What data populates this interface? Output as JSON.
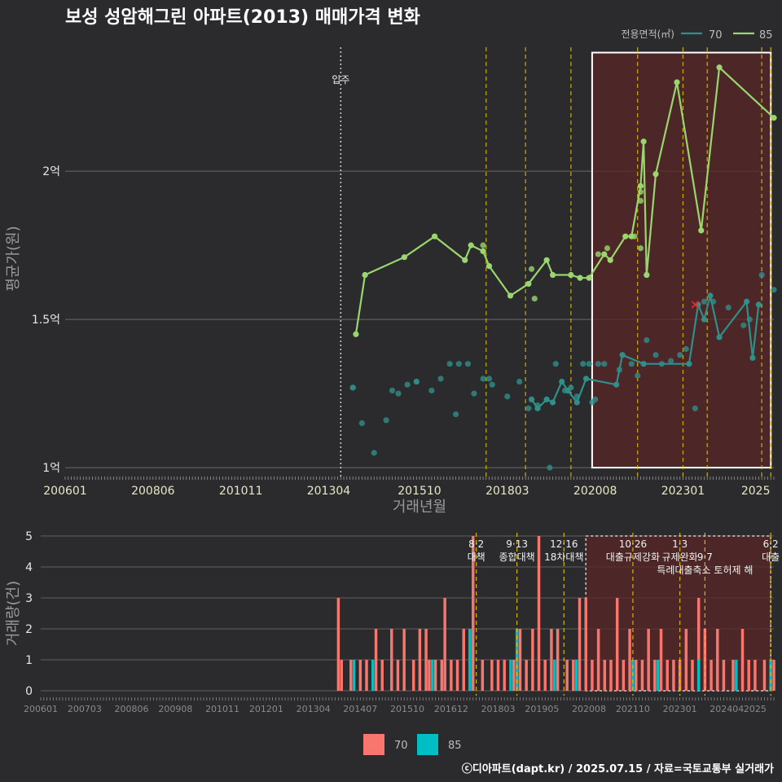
{
  "title": "보성 성암해그린 아파트(2013) 매매가격 변화",
  "caption": "ⓒ디아파트(dapt.kr) / 2025.07.15 / 자료=국토교통부 실거래가",
  "colors": {
    "s70": "#2f8f8a",
    "s85": "#9ad66e",
    "bar70": "#f8766d",
    "bar85": "#00bfc4",
    "policy": "#e6c400",
    "highlight": "#5a2527"
  },
  "chart_data": [
    {
      "type": "line",
      "xlabel": "거래년월",
      "ylabel": "평균가(원)",
      "x_ticks": [
        "200601",
        "200806",
        "201011",
        "201304",
        "201510",
        "201803",
        "202008",
        "202301",
        "2025"
      ],
      "y_ticks": [
        {
          "value": 10000,
          "label": "1억"
        },
        {
          "value": 15000,
          "label": "1.5억"
        },
        {
          "value": 20000,
          "label": "2억"
        }
      ],
      "ylim": [
        9700,
        24400
      ],
      "xlim": [
        "2006-01",
        "2025-07"
      ],
      "legend": {
        "title": "전용면적(㎡)",
        "position": "top-right",
        "entries": [
          "70",
          "85"
        ]
      },
      "annotation": {
        "label": "입주",
        "x": "2013-08"
      },
      "highlight": {
        "from": "2020-07",
        "to": "2025-06"
      },
      "policy_lines": [
        "2017-08",
        "2018-09",
        "2019-12",
        "2021-10",
        "2023-01",
        "2023-09",
        "2025-03",
        "2025-06"
      ],
      "marker_x": {
        "x": "2023-05",
        "y": 15500
      },
      "series": [
        {
          "name": "85",
          "line": [
            [
              "2014-01",
              14500
            ],
            [
              "2014-04",
              16500
            ],
            [
              "2015-05",
              17100
            ],
            [
              "2016-03",
              17800
            ],
            [
              "2017-01",
              17000
            ],
            [
              "2017-03",
              17500
            ],
            [
              "2017-07",
              17300
            ],
            [
              "2017-09",
              16800
            ],
            [
              "2018-04",
              15800
            ],
            [
              "2018-10",
              16200
            ],
            [
              "2019-04",
              17000
            ],
            [
              "2019-06",
              16500
            ],
            [
              "2019-12",
              16500
            ],
            [
              "2020-03",
              16400
            ],
            [
              "2020-06",
              16400
            ],
            [
              "2020-11",
              17200
            ],
            [
              "2021-01",
              17000
            ],
            [
              "2021-06",
              17800
            ],
            [
              "2021-08",
              17800
            ],
            [
              "2021-11",
              19500
            ],
            [
              "2021-12",
              21000
            ],
            [
              "2022-01",
              16500
            ],
            [
              "2022-04",
              19900
            ],
            [
              "2022-11",
              23000
            ],
            [
              "2023-07",
              18000
            ],
            [
              "2024-01",
              23500
            ],
            [
              "2025-07",
              21800
            ]
          ],
          "points": [
            [
              "2017-07",
              17500
            ],
            [
              "2018-11",
              16700
            ],
            [
              "2018-12",
              15700
            ],
            [
              "2020-09",
              17200
            ],
            [
              "2020-12",
              17400
            ],
            [
              "2021-09",
              17800
            ],
            [
              "2021-11",
              19000
            ],
            [
              "2021-11",
              19300
            ],
            [
              "2021-11",
              17400
            ],
            [
              "2022-01",
              16500
            ]
          ]
        },
        {
          "name": "70",
          "line": [
            [
              "2018-11",
              12300
            ],
            [
              "2019-01",
              12000
            ],
            [
              "2019-04",
              12300
            ],
            [
              "2019-06",
              12200
            ],
            [
              "2019-09",
              12900
            ],
            [
              "2019-11",
              12600
            ],
            [
              "2020-02",
              12200
            ],
            [
              "2020-05",
              13000
            ],
            [
              "2021-03",
              12800
            ],
            [
              "2021-05",
              13800
            ],
            [
              "2021-12",
              13500
            ],
            [
              "2023-03",
              13500
            ],
            [
              "2023-06",
              15500
            ],
            [
              "2023-08",
              15000
            ],
            [
              "2023-10",
              15800
            ],
            [
              "2024-01",
              14400
            ],
            [
              "2024-10",
              15600
            ],
            [
              "2024-12",
              13700
            ],
            [
              "2025-02",
              15500
            ]
          ],
          "points": [
            [
              "2013-12",
              12700
            ],
            [
              "2013-12",
              12700
            ],
            [
              "2014-03",
              11500
            ],
            [
              "2014-07",
              10500
            ],
            [
              "2014-11",
              11600
            ],
            [
              "2015-01",
              12600
            ],
            [
              "2015-03",
              12500
            ],
            [
              "2015-06",
              12800
            ],
            [
              "2015-09",
              12900
            ],
            [
              "2015-09",
              12900
            ],
            [
              "2016-02",
              12600
            ],
            [
              "2016-05",
              13000
            ],
            [
              "2016-08",
              13500
            ],
            [
              "2016-10",
              11800
            ],
            [
              "2016-11",
              13500
            ],
            [
              "2017-02",
              13500
            ],
            [
              "2017-04",
              12500
            ],
            [
              "2017-07",
              13000
            ],
            [
              "2017-09",
              13000
            ],
            [
              "2017-10",
              12800
            ],
            [
              "2018-03",
              12400
            ],
            [
              "2018-07",
              12900
            ],
            [
              "2018-10",
              12000
            ],
            [
              "2019-01",
              12100
            ],
            [
              "2019-05",
              10000
            ],
            [
              "2019-07",
              13500
            ],
            [
              "2019-10",
              12600
            ],
            [
              "2019-12",
              12700
            ],
            [
              "2020-02",
              12400
            ],
            [
              "2020-04",
              13500
            ],
            [
              "2020-06",
              13500
            ],
            [
              "2020-07",
              12200
            ],
            [
              "2020-08",
              12300
            ],
            [
              "2020-09",
              13500
            ],
            [
              "2020-11",
              13500
            ],
            [
              "2021-04",
              13300
            ],
            [
              "2021-08",
              13500
            ],
            [
              "2021-10",
              13100
            ],
            [
              "2022-01",
              14300
            ],
            [
              "2022-04",
              13800
            ],
            [
              "2022-06",
              13500
            ],
            [
              "2022-09",
              13600
            ],
            [
              "2022-12",
              13800
            ],
            [
              "2023-02",
              14000
            ],
            [
              "2023-05",
              12000
            ],
            [
              "2023-08",
              15600
            ],
            [
              "2023-11",
              15600
            ],
            [
              "2024-04",
              15400
            ],
            [
              "2024-09",
              14800
            ],
            [
              "2024-11",
              15000
            ],
            [
              "2025-03",
              16500
            ],
            [
              "2025-07",
              16000
            ]
          ]
        }
      ]
    },
    {
      "type": "bar",
      "xlabel": "",
      "ylabel": "거래량(건)",
      "x_ticks": [
        "200601",
        "200703",
        "200806",
        "200908",
        "201011",
        "201201",
        "201304",
        "201407",
        "201510",
        "201612",
        "201803",
        "201905",
        "202008",
        "202110",
        "202301",
        "202404",
        "2025"
      ],
      "y_ticks": [
        0,
        1,
        2,
        3,
        4,
        5
      ],
      "ylim": [
        0,
        5
      ],
      "legend": {
        "position": "bottom",
        "entries": [
          "70",
          "85"
        ]
      },
      "highlight": {
        "from": "2020-07",
        "to": "2025-06"
      },
      "policies": [
        {
          "x": "2017-08",
          "date": "8·2",
          "label": "대책",
          "row": 0
        },
        {
          "x": "2018-09",
          "date": "9·13",
          "label": "종합대책",
          "row": 0
        },
        {
          "x": "2019-12",
          "date": "12·16",
          "label": "18차대책",
          "row": 0
        },
        {
          "x": "2021-10",
          "date": "10·26",
          "label": "대출규제강화",
          "row": 0
        },
        {
          "x": "2023-01",
          "date": "1·3",
          "label": "규제완화",
          "row": 0
        },
        {
          "x": "2023-09",
          "date": "9·7",
          "label": "특례대출축소 토허제 해",
          "row": 1
        },
        {
          "x": "2025-06",
          "date": "6·2",
          "label": "대출",
          "row": 0
        }
      ],
      "series": [
        {
          "name": "70",
          "values": [
            [
              "2013-12",
              3
            ],
            [
              "2014-01",
              1
            ],
            [
              "2014-04",
              1
            ],
            [
              "2014-07",
              1
            ],
            [
              "2014-09",
              1
            ],
            [
              "2014-12",
              2
            ],
            [
              "2015-02",
              1
            ],
            [
              "2015-05",
              2
            ],
            [
              "2015-07",
              1
            ],
            [
              "2015-09",
              2
            ],
            [
              "2015-12",
              1
            ],
            [
              "2016-02",
              2
            ],
            [
              "2016-04",
              2
            ],
            [
              "2016-05",
              1
            ],
            [
              "2016-07",
              1
            ],
            [
              "2016-09",
              1
            ],
            [
              "2016-10",
              3
            ],
            [
              "2016-12",
              1
            ],
            [
              "2017-02",
              1
            ],
            [
              "2017-04",
              2
            ],
            [
              "2017-06",
              2
            ],
            [
              "2017-07",
              5
            ],
            [
              "2017-10",
              1
            ],
            [
              "2018-01",
              1
            ],
            [
              "2018-03",
              1
            ],
            [
              "2018-05",
              1
            ],
            [
              "2018-08",
              1
            ],
            [
              "2018-10",
              2
            ],
            [
              "2018-12",
              1
            ],
            [
              "2019-02",
              2
            ],
            [
              "2019-04",
              5
            ],
            [
              "2019-06",
              1
            ],
            [
              "2019-08",
              2
            ],
            [
              "2019-10",
              2
            ],
            [
              "2020-01",
              1
            ],
            [
              "2020-03",
              1
            ],
            [
              "2020-05",
              3
            ],
            [
              "2020-07",
              3
            ],
            [
              "2020-09",
              1
            ],
            [
              "2020-11",
              2
            ],
            [
              "2021-01",
              1
            ],
            [
              "2021-03",
              1
            ],
            [
              "2021-05",
              3
            ],
            [
              "2021-07",
              1
            ],
            [
              "2021-09",
              2
            ],
            [
              "2021-11",
              1
            ],
            [
              "2022-01",
              1
            ],
            [
              "2022-03",
              2
            ],
            [
              "2022-05",
              1
            ],
            [
              "2022-07",
              2
            ],
            [
              "2022-09",
              1
            ],
            [
              "2022-11",
              1
            ],
            [
              "2023-01",
              1
            ],
            [
              "2023-03",
              2
            ],
            [
              "2023-05",
              1
            ],
            [
              "2023-07",
              3
            ],
            [
              "2023-09",
              2
            ],
            [
              "2023-11",
              1
            ],
            [
              "2024-01",
              2
            ],
            [
              "2024-03",
              1
            ],
            [
              "2024-06",
              1
            ],
            [
              "2024-09",
              2
            ],
            [
              "2024-11",
              1
            ],
            [
              "2025-01",
              1
            ],
            [
              "2025-04",
              1
            ],
            [
              "2025-07",
              1
            ]
          ]
        },
        {
          "name": "85",
          "values": [
            [
              "2014-05",
              1
            ],
            [
              "2014-11",
              1
            ],
            [
              "2016-06",
              1
            ],
            [
              "2017-06",
              2
            ],
            [
              "2018-07",
              1
            ],
            [
              "2018-09",
              2
            ],
            [
              "2019-09",
              1
            ],
            [
              "2020-04",
              1
            ],
            [
              "2021-10",
              1
            ],
            [
              "2022-06",
              1
            ],
            [
              "2023-07",
              1
            ],
            [
              "2024-07",
              1
            ],
            [
              "2025-06",
              1
            ]
          ]
        }
      ]
    }
  ]
}
